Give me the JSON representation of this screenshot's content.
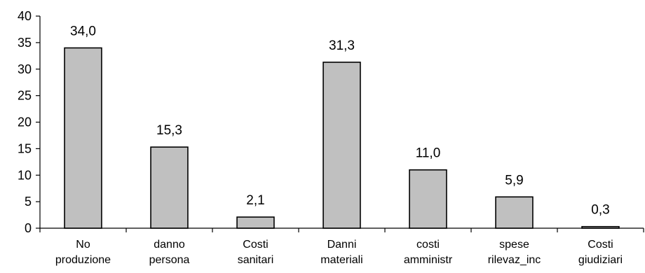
{
  "chart_data": {
    "type": "bar",
    "categories": [
      [
        "No",
        "produzione"
      ],
      [
        "danno",
        "persona"
      ],
      [
        "Costi",
        "sanitari"
      ],
      [
        "Danni",
        "materiali"
      ],
      [
        "costi",
        "amministr"
      ],
      [
        "spese",
        "rilevaz_inc"
      ],
      [
        "Costi",
        "giudiziari"
      ]
    ],
    "values": [
      34.0,
      15.3,
      2.1,
      31.3,
      11.0,
      5.9,
      0.3
    ],
    "data_labels": [
      "34,0",
      "15,3",
      "2,1",
      "31,3",
      "11,0",
      "5,9",
      "0,3"
    ],
    "y_ticks": [
      "0",
      "5",
      "10",
      "15",
      "20",
      "25",
      "30",
      "35",
      "40"
    ],
    "ylim": [
      0,
      40
    ],
    "title": "",
    "xlabel": "",
    "ylabel": "",
    "grid": false,
    "legend": "none",
    "colors": {
      "bar_fill": "#c0c0c0",
      "bar_stroke": "#000000",
      "axis": "#000000"
    }
  }
}
